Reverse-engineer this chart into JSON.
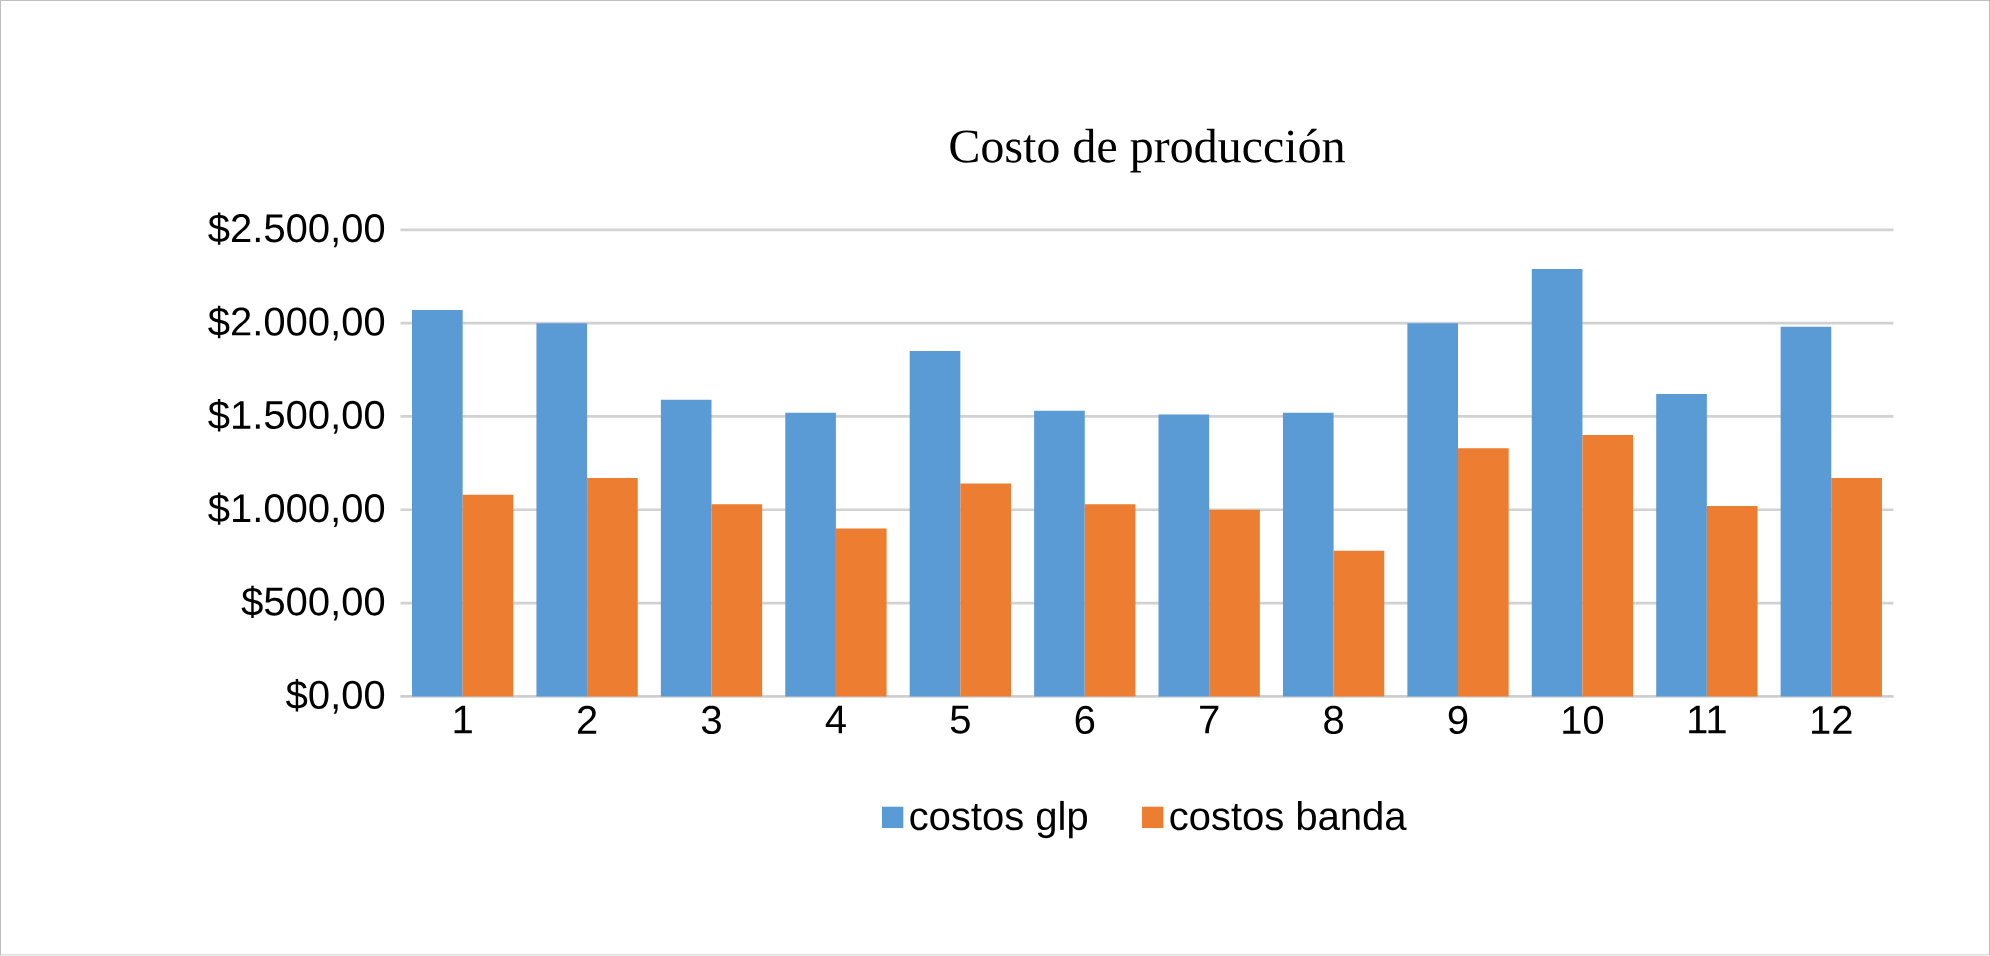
{
  "chart_data": {
    "type": "bar",
    "title": "Costo de producción",
    "categories": [
      "1",
      "2",
      "3",
      "4",
      "5",
      "6",
      "7",
      "8",
      "9",
      "10",
      "11",
      "12"
    ],
    "series": [
      {
        "name": "costos glp",
        "color": "#5b9bd5",
        "values": [
          2070,
          2000,
          1590,
          1520,
          1850,
          1530,
          1510,
          1520,
          2000,
          2290,
          1620,
          1980
        ]
      },
      {
        "name": "costos banda",
        "color": "#ed7d31",
        "values": [
          1080,
          1170,
          1030,
          900,
          1140,
          1030,
          1000,
          780,
          1330,
          1400,
          1020,
          1170
        ]
      }
    ],
    "ylim": [
      0,
      2500
    ],
    "yticks": [
      {
        "value": 0,
        "label": "$0,00"
      },
      {
        "value": 500,
        "label": "$500,00"
      },
      {
        "value": 1000,
        "label": "$1.000,00"
      },
      {
        "value": 1500,
        "label": "$1.500,00"
      },
      {
        "value": 2000,
        "label": "$2.000,00"
      },
      {
        "value": 2500,
        "label": "$2.500,00"
      }
    ],
    "grid": "y",
    "legend": "bottom"
  }
}
